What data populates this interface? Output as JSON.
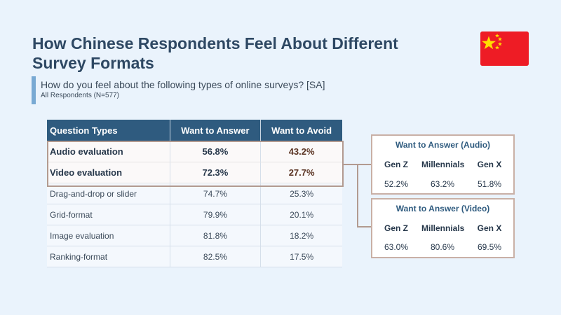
{
  "title": "How Chinese Respondents Feel About Different Survey Formats",
  "question": "How do you feel about the following types of online surveys? [SA]",
  "respondents": "All  Respondents (N=577)",
  "flag": {
    "icon": "china-flag-icon",
    "red": "#ee1c25",
    "star": "#ffde00"
  },
  "table": {
    "headers": [
      "Question Types",
      "Want to Answer",
      "Want to Avoid"
    ],
    "rows": [
      {
        "type": "Audio evaluation",
        "answer": "56.8%",
        "avoid": "43.2%"
      },
      {
        "type": "Video evaluation",
        "answer": "72.3%",
        "avoid": "27.7%"
      },
      {
        "type": "Drag-and-drop or slider",
        "answer": "74.7%",
        "avoid": "25.3%"
      },
      {
        "type": "Grid-format",
        "answer": "79.9%",
        "avoid": "20.1%"
      },
      {
        "type": "Image evaluation",
        "answer": "81.8%",
        "avoid": "18.2%"
      },
      {
        "type": "Ranking-format",
        "answer": "82.5%",
        "avoid": "17.5%"
      }
    ]
  },
  "audio_card": {
    "title": "Want to Answer (Audio)",
    "generations": [
      "Gen Z",
      "Millennials",
      "Gen X"
    ],
    "values": [
      "52.2%",
      "63.2%",
      "51.8%"
    ]
  },
  "video_card": {
    "title": "Want to Answer (Video)",
    "generations": [
      "Gen Z",
      "Millennials",
      "Gen X"
    ],
    "values": [
      "63.0%",
      "80.6%",
      "69.5%"
    ]
  },
  "colors": {
    "header_bg": "#2f5b7f",
    "title": "#2e4863",
    "highlight_border": "#b29a90",
    "accent_bar": "#78a9d3"
  }
}
